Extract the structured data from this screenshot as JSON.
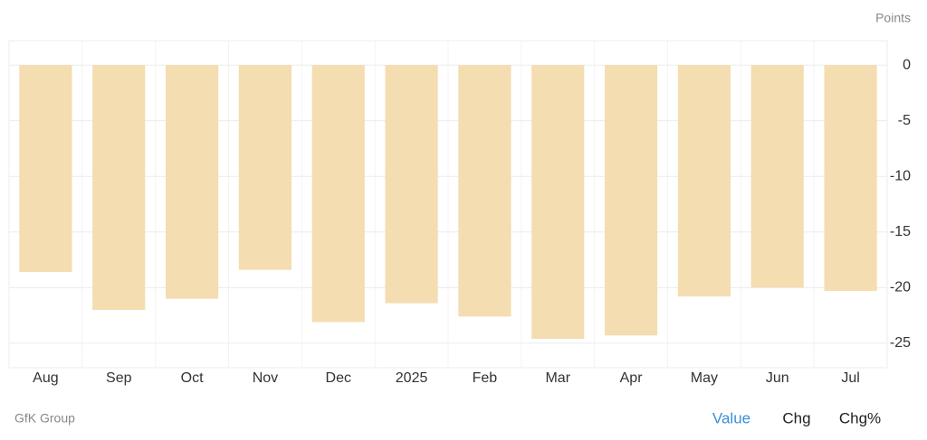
{
  "chart_data": {
    "type": "bar",
    "unit_label": "Points",
    "categories": [
      "Aug",
      "Sep",
      "Oct",
      "Nov",
      "Dec",
      "2025",
      "Feb",
      "Mar",
      "Apr",
      "May",
      "Jun",
      "Jul"
    ],
    "values": [
      -18.6,
      -22.0,
      -21.0,
      -18.4,
      -23.1,
      -21.4,
      -22.6,
      -24.6,
      -24.3,
      -20.8,
      -20.0,
      -20.3
    ],
    "color": "#f4ddb1",
    "ylim": [
      -27.2,
      2.2
    ],
    "yticks": [
      0,
      -5,
      -10,
      -15,
      -20,
      -25
    ],
    "grid": true,
    "source": "GfK Group",
    "tabs": [
      "Value",
      "Chg",
      "Chg%"
    ],
    "active_tab": 0
  }
}
